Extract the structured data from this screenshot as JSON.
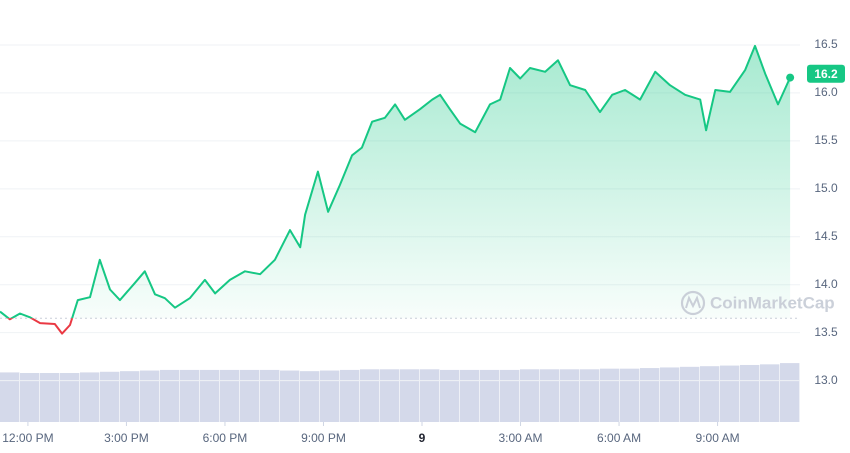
{
  "chart_data": {
    "type": "line",
    "watermark": "CoinMarketCap",
    "current_price": 16.2,
    "baseline": 13.65,
    "up_color": "#16c784",
    "down_color": "#ea3943",
    "grid": true,
    "xlim": [
      -0.85,
      23.51
    ],
    "ylim": [
      12.6,
      17.0
    ],
    "xticks": [
      {
        "value": 0,
        "label": "12:00 PM"
      },
      {
        "value": 3,
        "label": "3:00 PM"
      },
      {
        "value": 6,
        "label": "6:00 PM"
      },
      {
        "value": 9,
        "label": "9:00 PM"
      },
      {
        "value": 12,
        "label": "9"
      },
      {
        "value": 15,
        "label": "3:00 AM"
      },
      {
        "value": 18,
        "label": "6:00 AM"
      },
      {
        "value": 21,
        "label": "9:00 AM"
      }
    ],
    "yticks": [
      {
        "value": 13,
        "label": "13.0"
      },
      13.5,
      {
        "value": 14,
        "label": "14.0"
      },
      14.5,
      {
        "value": 15,
        "label": "15.0"
      },
      15.5,
      {
        "value": 16,
        "label": "16.0"
      },
      16.5
    ],
    "x": [
      -0.85,
      -0.55,
      -0.24,
      0.06,
      0.37,
      0.82,
      1.04,
      1.28,
      1.52,
      1.89,
      2.19,
      2.5,
      2.8,
      3.26,
      3.56,
      3.87,
      4.17,
      4.48,
      4.93,
      5.39,
      5.7,
      6.15,
      6.61,
      7.07,
      7.52,
      7.98,
      8.29,
      8.44,
      8.83,
      9.14,
      9.5,
      9.87,
      10.17,
      10.48,
      10.87,
      11.18,
      11.48,
      11.94,
      12.31,
      12.55,
      12.85,
      13.16,
      13.62,
      14.07,
      14.38,
      14.68,
      14.99,
      15.29,
      15.75,
      16.14,
      16.51,
      16.97,
      17.42,
      17.79,
      18.18,
      18.64,
      19.1,
      19.55,
      20.01,
      20.47,
      20.65,
      20.93,
      21.38,
      21.84,
      22.14,
      22.45,
      22.84,
      23.21
    ],
    "values": [
      13.72,
      13.64,
      13.7,
      13.66,
      13.6,
      13.59,
      13.49,
      13.58,
      13.84,
      13.87,
      14.26,
      13.95,
      13.84,
      14.02,
      14.14,
      13.9,
      13.86,
      13.76,
      13.86,
      14.05,
      13.91,
      14.05,
      14.14,
      14.11,
      14.26,
      14.57,
      14.39,
      14.73,
      15.18,
      14.76,
      15.04,
      15.35,
      15.43,
      15.7,
      15.74,
      15.88,
      15.72,
      15.83,
      15.93,
      15.98,
      15.83,
      15.68,
      15.59,
      15.88,
      15.93,
      16.26,
      16.15,
      16.26,
      16.22,
      16.34,
      16.08,
      16.03,
      15.8,
      15.98,
      16.03,
      15.93,
      16.22,
      16.08,
      15.98,
      15.93,
      15.61,
      16.03,
      16.01,
      16.24,
      16.49,
      16.2,
      15.88,
      16.16
    ],
    "volume": {
      "color": "#d4d9ea",
      "ylim": [
        0,
        100
      ],
      "values": [
        80,
        79,
        79,
        79,
        80,
        81,
        82,
        83,
        84,
        84,
        84,
        84,
        84,
        84,
        83,
        82,
        83,
        84,
        85,
        85,
        85,
        85,
        84,
        84,
        84,
        84,
        85,
        85,
        85,
        85,
        86,
        86,
        87,
        88,
        89,
        90,
        91,
        92,
        93,
        95
      ]
    }
  }
}
